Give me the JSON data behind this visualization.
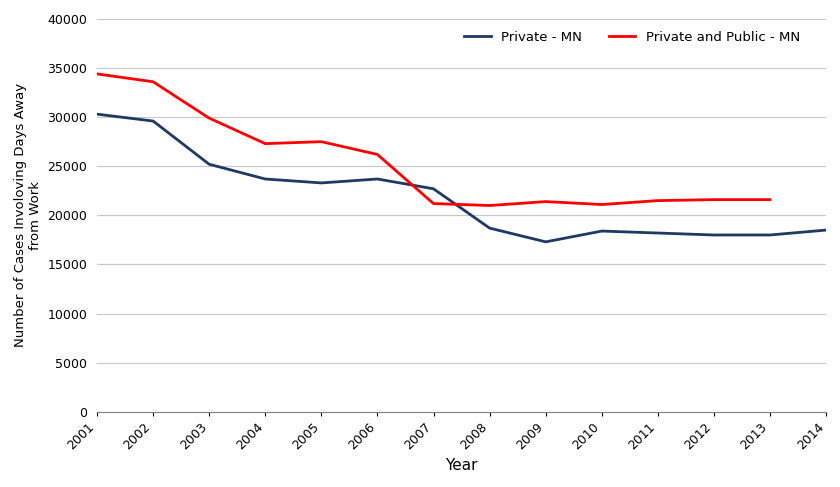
{
  "years": [
    2001,
    2002,
    2003,
    2004,
    2005,
    2006,
    2007,
    2008,
    2009,
    2010,
    2011,
    2012,
    2013,
    2014
  ],
  "private_mn": [
    30300,
    29600,
    25200,
    23700,
    23300,
    23700,
    22700,
    18700,
    17300,
    18400,
    18200,
    18000,
    18000,
    18500
  ],
  "private_public_mn": [
    34400,
    33600,
    29900,
    27300,
    27500,
    26200,
    21200,
    21000,
    21400,
    21100,
    21500,
    21600,
    21600,
    null
  ],
  "private_color": "#1f3864",
  "public_color": "#ff0000",
  "xlabel": "Year",
  "ylabel": "Number of Cases Involoving Days Away\nfrom Work",
  "ylim": [
    0,
    40000
  ],
  "yticks": [
    0,
    5000,
    10000,
    15000,
    20000,
    25000,
    30000,
    35000,
    40000
  ],
  "legend_private": "Private - MN",
  "legend_public": "Private and Public - MN",
  "bg_color": "#ffffff",
  "linewidth": 2.0
}
